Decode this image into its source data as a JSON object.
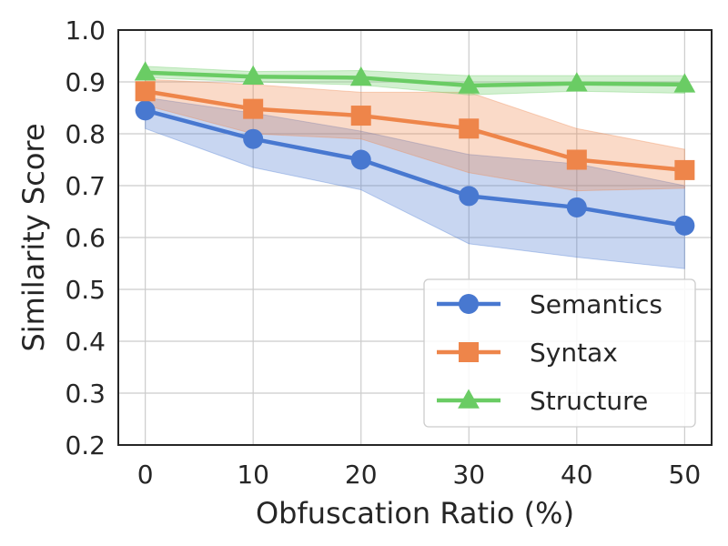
{
  "chart_data": {
    "type": "line",
    "title": "",
    "xlabel": "Obfuscation Ratio (%)",
    "ylabel": "Similarity Score",
    "x": [
      0,
      10,
      20,
      30,
      40,
      50
    ],
    "xlim": [
      -2.5,
      52.5
    ],
    "ylim": [
      0.2,
      1.0
    ],
    "xticks": [
      0,
      10,
      20,
      30,
      40,
      50
    ],
    "yticks": [
      0.2,
      0.3,
      0.4,
      0.5,
      0.6,
      0.7,
      0.8,
      0.9,
      1.0
    ],
    "xtick_labels": [
      "0",
      "10",
      "20",
      "30",
      "40",
      "50"
    ],
    "ytick_labels": [
      "0.2",
      "0.3",
      "0.4",
      "0.5",
      "0.6",
      "0.7",
      "0.8",
      "0.9",
      "1.0"
    ],
    "grid": true,
    "legend_position": "lower-right",
    "series": [
      {
        "name": "Semantics",
        "color": "#4878d0",
        "marker": "circle",
        "values": [
          0.845,
          0.79,
          0.75,
          0.68,
          0.658,
          0.623
        ],
        "lower": [
          0.81,
          0.735,
          0.692,
          0.588,
          0.562,
          0.54
        ],
        "upper": [
          0.87,
          0.84,
          0.805,
          0.76,
          0.742,
          0.7
        ]
      },
      {
        "name": "Syntax",
        "color": "#ee854a",
        "marker": "square",
        "values": [
          0.882,
          0.848,
          0.835,
          0.81,
          0.75,
          0.73
        ],
        "lower": [
          0.855,
          0.8,
          0.79,
          0.725,
          0.69,
          0.695
        ],
        "upper": [
          0.905,
          0.895,
          0.88,
          0.88,
          0.81,
          0.77
        ]
      },
      {
        "name": "Structure",
        "color": "#6acc64",
        "marker": "triangle",
        "values": [
          0.918,
          0.91,
          0.908,
          0.893,
          0.897,
          0.895
        ],
        "lower": [
          0.908,
          0.9,
          0.894,
          0.875,
          0.882,
          0.878
        ],
        "upper": [
          0.93,
          0.92,
          0.922,
          0.912,
          0.912,
          0.912
        ]
      }
    ]
  }
}
